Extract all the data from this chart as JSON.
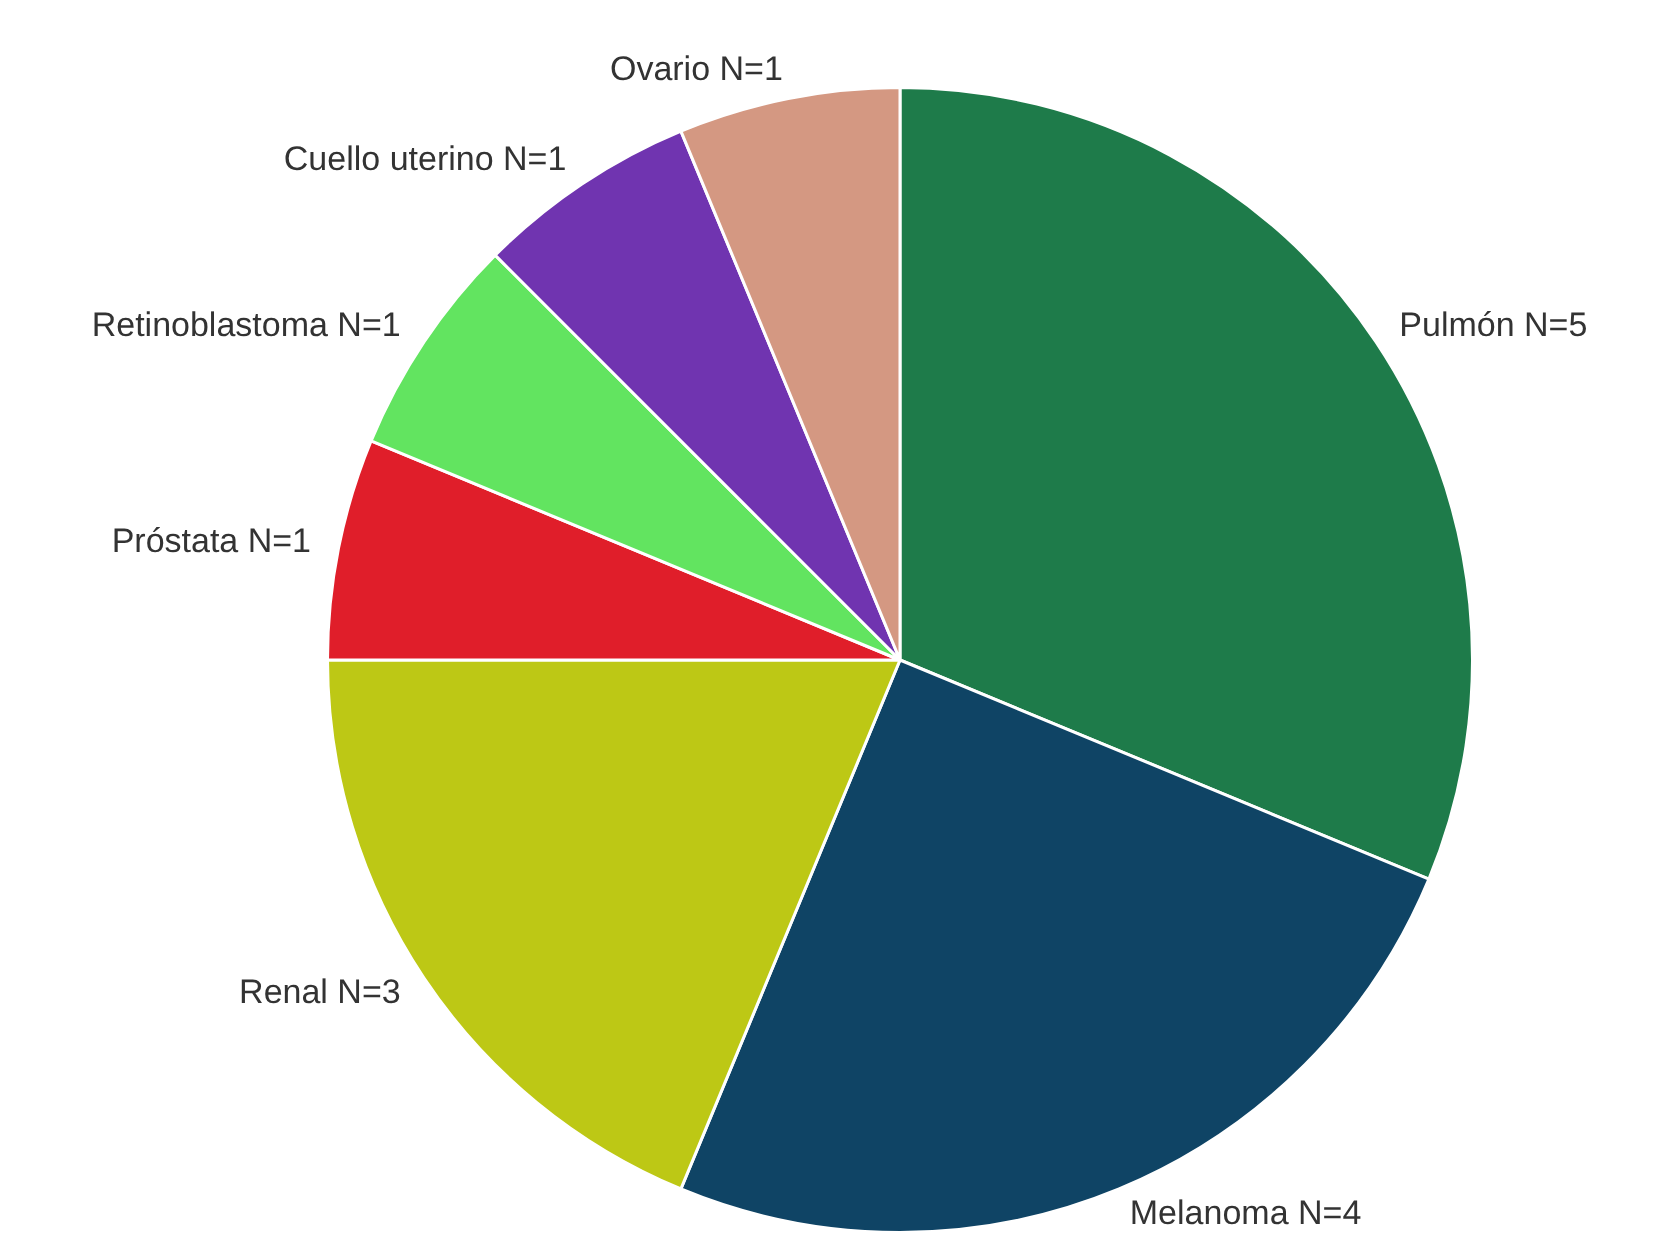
{
  "chart_data": {
    "type": "pie",
    "categories": [
      "Pulmón",
      "Melanoma",
      "Renal",
      "Próstata",
      "Retinoblastoma",
      "Cuello uterino",
      "Ovario"
    ],
    "values": [
      5,
      4,
      3,
      1,
      1,
      1,
      1
    ],
    "value_labels": [
      "N=5",
      "N=4",
      "N=3",
      "N=1",
      "N=1",
      "N=1",
      "N=1"
    ],
    "colors": [
      "#1e7b4a",
      "#0f4465",
      "#bdc815",
      "#e01e2a",
      "#62e460",
      "#7034b0",
      "#d49882"
    ],
    "legend": false
  }
}
